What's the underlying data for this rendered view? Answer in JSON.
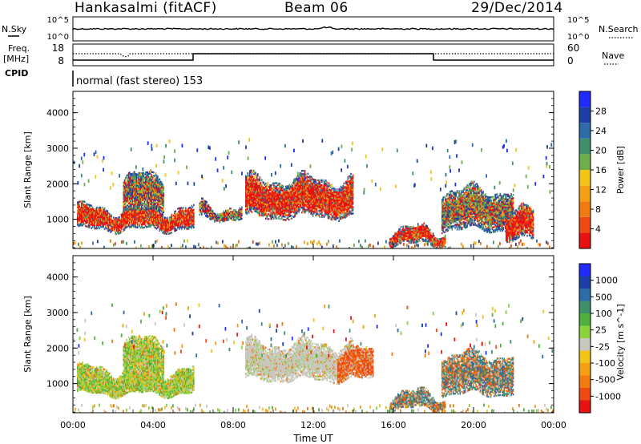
{
  "header": {
    "station": "Hankasalmi (fitACF)",
    "beam": "Beam 06",
    "date": "29/Dec/2014"
  },
  "summary": {
    "left_top": "N.Sky",
    "left_freq": "Freq.",
    "left_freq_unit": "[MHz]",
    "left_cpid": "CPID",
    "right_top": "N.Search",
    "right_nave": "Nave",
    "nsky_ticks": [
      "10^5",
      "10^0"
    ],
    "nsearch_ticks": [
      "10^5",
      "10^0"
    ],
    "freq_ticks": [
      "18",
      "8"
    ],
    "nave_ticks": [
      "60",
      "0"
    ],
    "cpid_text": "normal (fast stereo) 153"
  },
  "colors": {
    "power": [
      "#1f2bff",
      "#1e3fa8",
      "#2e6ba8",
      "#3f8f6a",
      "#6fae4c",
      "#f2c418",
      "#f5a012",
      "#f27a10",
      "#ee4a12",
      "#e81212"
    ],
    "velocity": [
      "#1f2bff",
      "#1e3fa8",
      "#2e6ba8",
      "#3f8f6a",
      "#4fb040",
      "#8bd23c",
      "#c8c8c0",
      "#f2c418",
      "#f5a012",
      "#f27a10",
      "#ee4a12",
      "#e81212"
    ]
  },
  "chart_data": [
    {
      "type": "heatmap",
      "name": "power",
      "ylabel": "Slant Range [km]",
      "xlabel": "",
      "ylim": [
        180,
        4600
      ],
      "yticks": [
        "1000",
        "2000",
        "3000",
        "4000"
      ],
      "colorbar_label": "Power [dB]",
      "colorbar_ticks": [
        "28",
        "24",
        "20",
        "16",
        "12",
        "8",
        "4"
      ],
      "bands": [
        {
          "t0": 0.2,
          "t1": 6.0,
          "r0": 700,
          "r1": 1300,
          "level": "high"
        },
        {
          "t0": 2.5,
          "t1": 4.5,
          "r0": 1200,
          "r1": 2200,
          "level": "mid"
        },
        {
          "t0": 6.3,
          "t1": 8.4,
          "r0": 1000,
          "r1": 1350,
          "level": "mid"
        },
        {
          "t0": 8.6,
          "t1": 14.0,
          "r0": 1050,
          "r1": 2100,
          "level": "high"
        },
        {
          "t0": 15.8,
          "t1": 18.6,
          "r0": 280,
          "r1": 700,
          "level": "high"
        },
        {
          "t0": 18.4,
          "t1": 22.0,
          "r0": 700,
          "r1": 1800,
          "level": "mid"
        },
        {
          "t0": 21.6,
          "t1": 23.0,
          "r0": 400,
          "r1": 1200,
          "level": "high"
        }
      ]
    },
    {
      "type": "heatmap",
      "name": "velocity",
      "ylabel": "Slant Range [km]",
      "xlabel": "Time UT",
      "ylim": [
        180,
        4600
      ],
      "yticks": [
        "1000",
        "2000",
        "3000",
        "4000"
      ],
      "xticks": [
        "00:00",
        "04:00",
        "08:00",
        "12:00",
        "16:00",
        "20:00",
        "00:00"
      ],
      "colorbar_label": "Velocity [m s^-1]",
      "colorbar_ticks": [
        "1000",
        "500",
        "100",
        "25",
        "-25",
        "-100",
        "-500",
        "-1000"
      ],
      "bands": [
        {
          "t0": 0.2,
          "t1": 6.0,
          "r0": 700,
          "r1": 1400,
          "level": "green"
        },
        {
          "t0": 8.6,
          "t1": 14.0,
          "r0": 1100,
          "r1": 2100,
          "level": "grey"
        },
        {
          "t0": 13.2,
          "t1": 15.0,
          "r0": 1100,
          "r1": 1900,
          "level": "orange"
        },
        {
          "t0": 18.4,
          "t1": 22.0,
          "r0": 700,
          "r1": 1800,
          "level": "mixed"
        }
      ]
    }
  ]
}
